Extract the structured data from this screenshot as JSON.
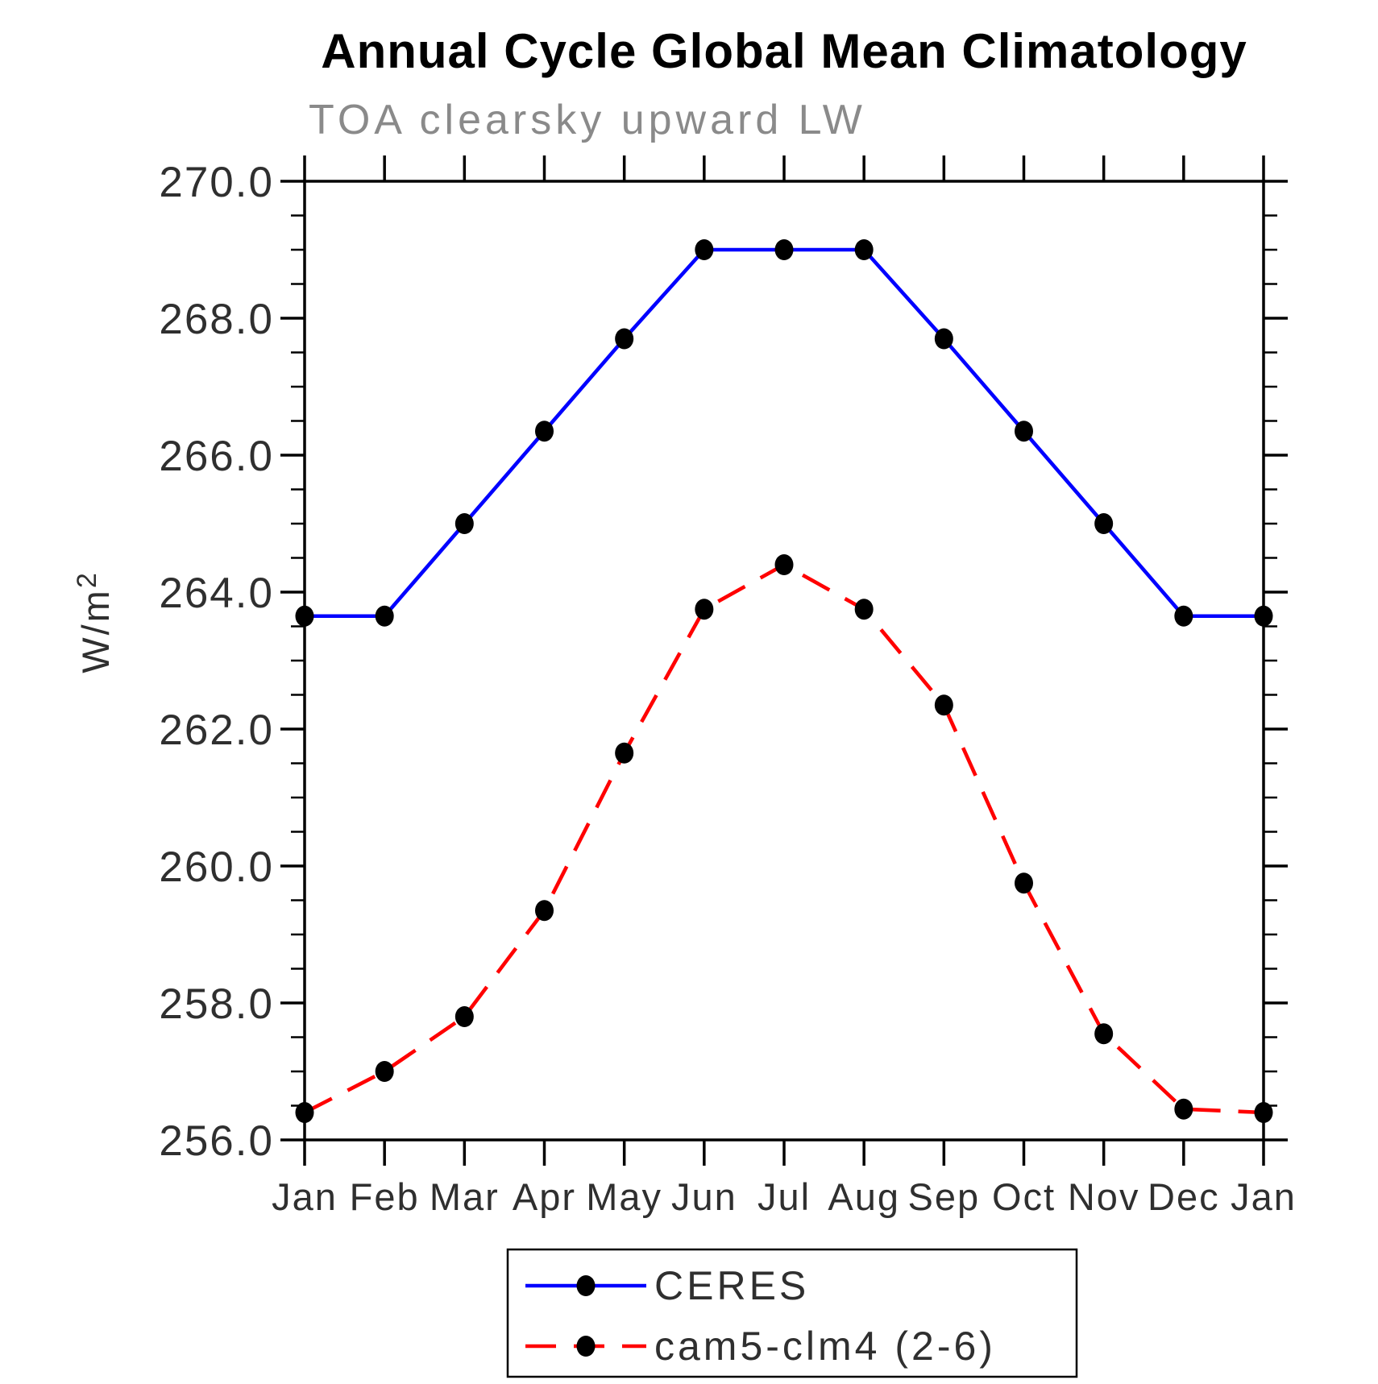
{
  "chart_data": {
    "type": "line",
    "title": "Annual Cycle Global Mean Climatology",
    "subtitle": "TOA clearsky upward LW",
    "ylabel_base": "W/m",
    "ylabel_exponent": "2",
    "categories": [
      "Jan",
      "Feb",
      "Mar",
      "Apr",
      "May",
      "Jun",
      "Jul",
      "Aug",
      "Sep",
      "Oct",
      "Nov",
      "Dec",
      "Jan"
    ],
    "ylim": [
      256.0,
      270.0
    ],
    "ytick_major_step": 2.0,
    "ytick_minor_step": 0.5,
    "ytick_label_format": "one_decimal",
    "grid": false,
    "legend_position": "below-plot",
    "marker": {
      "shape": "filled-circle",
      "color": "#000000"
    },
    "series": [
      {
        "name": "CERES",
        "color": "#0000ff",
        "line_style": "solid",
        "values": [
          263.65,
          263.65,
          265.0,
          266.35,
          267.7,
          269.0,
          269.0,
          269.0,
          267.7,
          266.35,
          265.0,
          263.65,
          263.65
        ]
      },
      {
        "name": "cam5-clm4 (2-6)",
        "color": "#ff0000",
        "line_style": "dashed",
        "values": [
          256.4,
          257.0,
          257.8,
          259.35,
          261.65,
          263.75,
          264.4,
          263.75,
          262.35,
          259.75,
          257.55,
          256.45,
          256.4
        ]
      }
    ]
  }
}
